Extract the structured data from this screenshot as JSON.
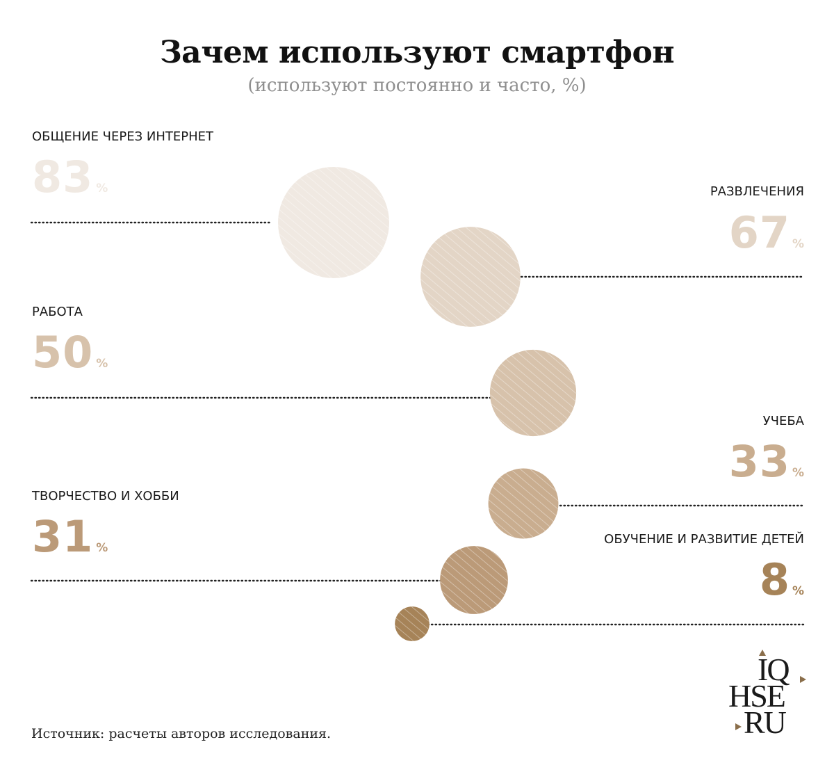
{
  "title": "Зачем используют смартфон",
  "subtitle": "(используют постоянно и часто, %)",
  "source": "Источник: расчеты авторов исследования.",
  "logo": {
    "line1": "IQ",
    "line2": "HSE",
    "line3": "RU"
  },
  "chart_data": {
    "type": "bubble",
    "unit": "%",
    "items": [
      {
        "label": "ОБЩЕНИЕ ЧЕРЕЗ ИНТЕРНЕТ",
        "value": 83,
        "side": "left",
        "color": "#f0e9e2"
      },
      {
        "label": "РАЗВЛЕЧЕНИЯ",
        "value": 67,
        "side": "right",
        "color": "#e3d5c6"
      },
      {
        "label": "РАБОТА",
        "value": 50,
        "side": "left",
        "color": "#d7c2ab"
      },
      {
        "label": "УЧЕБА",
        "value": 33,
        "side": "right",
        "color": "#c9ad8f"
      },
      {
        "label": "ТВОРЧЕСТВО И ХОББИ",
        "value": 31,
        "side": "left",
        "color": "#bb9a78"
      },
      {
        "label": "ОБУЧЕНИЕ И РАЗВИТИЕ ДЕТЕЙ",
        "value": 8,
        "side": "right",
        "color": "#a68358"
      }
    ]
  }
}
